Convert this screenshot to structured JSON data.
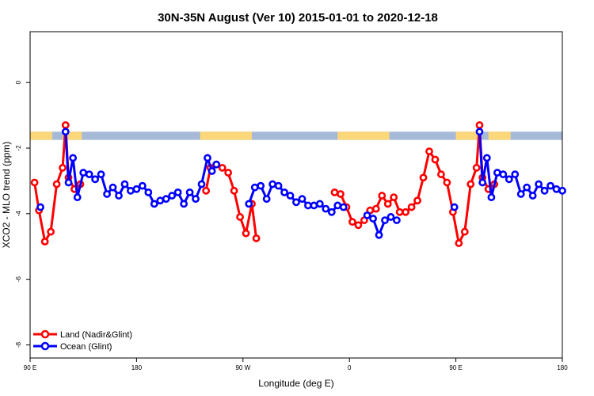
{
  "chart_data": {
    "type": "line",
    "title": "30N-35N August (Ver 10)   2015-01-01 to 2020-12-18",
    "xlabel": "Longitude (deg E)",
    "ylabel": "XCO2 - MLO trend (ppm)",
    "xlim": [
      90,
      450
    ],
    "ylim": [
      -8.4,
      1.55
    ],
    "x_ticks": [
      90,
      162,
      234,
      306,
      378,
      450
    ],
    "x_tick_labels": [
      "90 E",
      "180",
      "90 W",
      "0",
      "90 E",
      "180"
    ],
    "y_ticks": [
      0,
      -2,
      -4,
      -6,
      -8
    ],
    "y_tick_labels": [
      "0",
      "-2",
      "-4",
      "-6",
      "-8"
    ],
    "grid": false,
    "legend_position": "bottom-left",
    "land_ocean_band": {
      "y_range": [
        -1.75,
        -1.5
      ],
      "ocean_color": "#a7b9d8",
      "land_color": "#fbd77a",
      "land_segments": [
        [
          90,
          105
        ],
        [
          112,
          125
        ],
        [
          205,
          240
        ],
        [
          298,
          333
        ],
        [
          378,
          393
        ],
        [
          400,
          415
        ]
      ]
    },
    "series": [
      {
        "name": "Land (Nadir&Glint)",
        "color": "#ff0000",
        "segments": [
          [
            [
              93,
              -3.05
            ],
            [
              96,
              -3.9
            ],
            [
              100,
              -4.85
            ],
            [
              104,
              -4.55
            ],
            [
              108,
              -3.1
            ],
            [
              112,
              -2.6
            ],
            [
              114,
              -1.3
            ],
            [
              116,
              -2.9
            ],
            [
              120,
              -3.25
            ],
            [
              124,
              -3.1
            ]
          ],
          [
            [
              209,
              -3.3
            ],
            [
              212,
              -2.6
            ],
            [
              216,
              -2.5
            ],
            [
              220,
              -2.6
            ],
            [
              224,
              -2.75
            ],
            [
              228,
              -3.3
            ],
            [
              232,
              -4.1
            ],
            [
              236,
              -4.6
            ],
            [
              240,
              -3.7
            ],
            [
              243,
              -4.75
            ]
          ],
          [
            [
              296,
              -3.35
            ],
            [
              300,
              -3.4
            ],
            [
              304,
              -3.8
            ],
            [
              308,
              -4.25
            ],
            [
              312,
              -4.35
            ],
            [
              316,
              -4.2
            ],
            [
              320,
              -3.9
            ],
            [
              324,
              -3.85
            ],
            [
              328,
              -3.45
            ],
            [
              332,
              -3.7
            ],
            [
              336,
              -3.5
            ],
            [
              340,
              -3.95
            ],
            [
              344,
              -3.95
            ],
            [
              348,
              -3.8
            ],
            [
              352,
              -3.6
            ],
            [
              356,
              -2.9
            ],
            [
              360,
              -2.1
            ],
            [
              364,
              -2.35
            ],
            [
              368,
              -2.8
            ],
            [
              372,
              -3.05
            ],
            [
              376,
              -3.95
            ],
            [
              380,
              -4.9
            ],
            [
              384,
              -4.55
            ],
            [
              388,
              -3.1
            ],
            [
              392,
              -2.6
            ],
            [
              394,
              -1.3
            ],
            [
              396,
              -2.9
            ],
            [
              400,
              -3.25
            ],
            [
              404,
              -3.1
            ]
          ]
        ]
      },
      {
        "name": "Ocean (Glint)",
        "color": "#0000ff",
        "segments": [
          [
            [
              97,
              -3.8
            ]
          ],
          [
            [
              114,
              -1.5
            ],
            [
              116,
              -3.05
            ],
            [
              119,
              -2.3
            ],
            [
              122,
              -3.5
            ],
            [
              126,
              -2.75
            ],
            [
              130,
              -2.8
            ],
            [
              134,
              -2.95
            ],
            [
              138,
              -2.8
            ],
            [
              142,
              -3.4
            ],
            [
              146,
              -3.2
            ],
            [
              150,
              -3.45
            ],
            [
              154,
              -3.1
            ],
            [
              158,
              -3.3
            ],
            [
              162,
              -3.25
            ],
            [
              166,
              -3.15
            ],
            [
              170,
              -3.35
            ],
            [
              174,
              -3.7
            ],
            [
              178,
              -3.6
            ],
            [
              182,
              -3.55
            ],
            [
              186,
              -3.45
            ],
            [
              190,
              -3.35
            ],
            [
              194,
              -3.7
            ],
            [
              198,
              -3.35
            ],
            [
              202,
              -3.55
            ],
            [
              206,
              -3.1
            ],
            [
              210,
              -2.3
            ],
            [
              213,
              -2.7
            ],
            [
              216,
              -2.5
            ]
          ],
          [
            [
              238,
              -3.7
            ],
            [
              242,
              -3.2
            ],
            [
              246,
              -3.15
            ],
            [
              250,
              -3.55
            ],
            [
              254,
              -3.1
            ],
            [
              258,
              -3.15
            ],
            [
              262,
              -3.35
            ],
            [
              266,
              -3.45
            ],
            [
              270,
              -3.65
            ],
            [
              274,
              -3.55
            ],
            [
              278,
              -3.75
            ],
            [
              282,
              -3.75
            ],
            [
              286,
              -3.7
            ],
            [
              290,
              -3.85
            ],
            [
              294,
              -3.95
            ],
            [
              298,
              -3.75
            ],
            [
              302,
              -3.8
            ]
          ],
          [
            [
              318,
              -4.05
            ],
            [
              322,
              -4.15
            ],
            [
              326,
              -4.65
            ],
            [
              330,
              -4.2
            ],
            [
              334,
              -4.1
            ],
            [
              338,
              -4.2
            ]
          ],
          [
            [
              377,
              -3.8
            ]
          ],
          [
            [
              394,
              -1.5
            ],
            [
              396,
              -3.05
            ],
            [
              399,
              -2.3
            ],
            [
              402,
              -3.5
            ],
            [
              406,
              -2.75
            ],
            [
              410,
              -2.8
            ],
            [
              414,
              -2.95
            ],
            [
              418,
              -2.8
            ],
            [
              422,
              -3.4
            ],
            [
              426,
              -3.2
            ],
            [
              430,
              -3.45
            ],
            [
              434,
              -3.1
            ],
            [
              438,
              -3.3
            ],
            [
              442,
              -3.15
            ],
            [
              446,
              -3.25
            ],
            [
              450,
              -3.3
            ]
          ]
        ]
      }
    ]
  }
}
